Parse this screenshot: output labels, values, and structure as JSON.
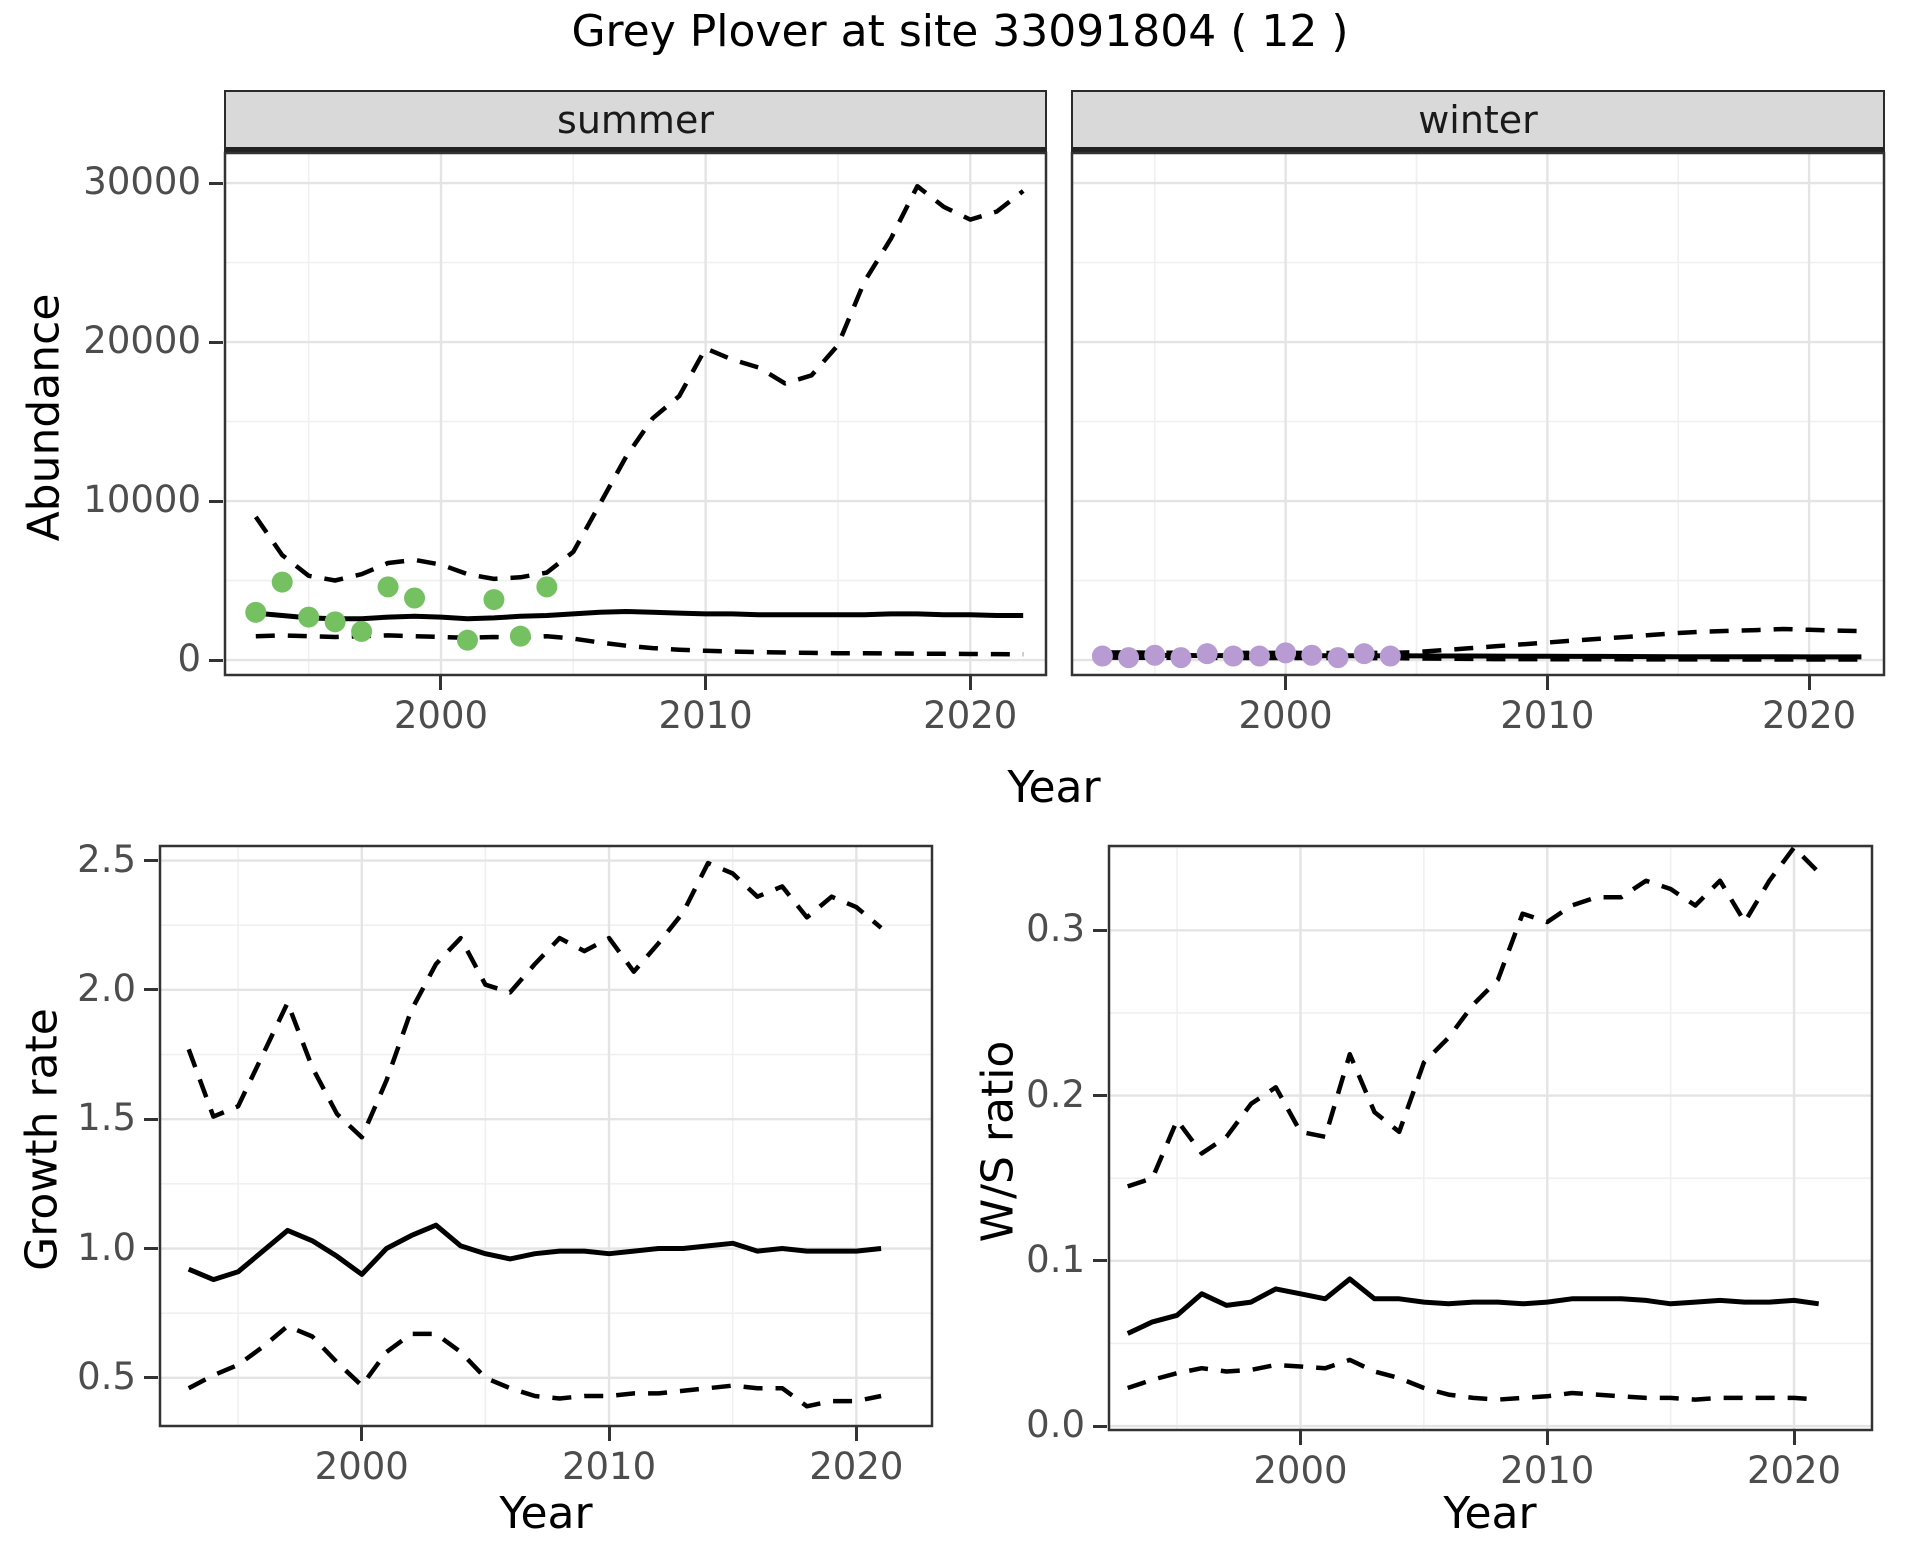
{
  "figure": {
    "title": "Grey Plover at site 33091804 ( 12 )"
  },
  "colors": {
    "summer_points": "#75C162",
    "winter_points": "#B79BD2",
    "line": "#000000",
    "strip_fill": "#d9d9d9",
    "major_grid": "#e4e4e4",
    "minor_grid": "#f0f0f0",
    "panel_border": "#333333",
    "tick_text": "#4d4d4d"
  },
  "chart_data": [
    {
      "id": "abundance-summer",
      "type": "line",
      "facet_label": "summer",
      "ylabel": "Abundance",
      "xlabel": "Year",
      "xlim": [
        1991.8,
        2022.9
      ],
      "ylim": [
        -1005,
        31951
      ],
      "xticks": [
        2000,
        2010,
        2020
      ],
      "xtick_labels": [
        "2000",
        "2010",
        "2020"
      ],
      "xticks_minor": [
        1995,
        2005,
        2015
      ],
      "yticks": [
        0,
        10000,
        20000,
        30000
      ],
      "ytick_labels": [
        "0",
        "10000",
        "20000",
        "30000"
      ],
      "yticks_minor": [
        5000,
        15000,
        25000
      ],
      "grid": true,
      "legend": "none",
      "series": [
        {
          "name": "upper-95ci",
          "style": "dashed",
          "x_start": 1993,
          "y": [
            9000,
            6600,
            5300,
            5000,
            5400,
            6100,
            6300,
            6000,
            5400,
            5100,
            5200,
            5500,
            6800,
            9800,
            12800,
            15200,
            16600,
            19600,
            18900,
            18400,
            17400,
            17900,
            19800,
            23800,
            26500,
            29800,
            28500,
            27700,
            28200,
            29500
          ]
        },
        {
          "name": "lower-95ci",
          "style": "dashed",
          "x_start": 1993,
          "y": [
            1500,
            1550,
            1500,
            1450,
            1500,
            1550,
            1500,
            1450,
            1400,
            1450,
            1400,
            1500,
            1350,
            1100,
            900,
            750,
            650,
            580,
            530,
            500,
            470,
            450,
            430,
            420,
            410,
            400,
            390,
            380,
            370,
            360
          ]
        },
        {
          "name": "median",
          "style": "solid",
          "x_start": 1993,
          "y": [
            2950,
            2800,
            2650,
            2600,
            2600,
            2700,
            2750,
            2700,
            2600,
            2650,
            2750,
            2800,
            2900,
            3000,
            3050,
            3000,
            2950,
            2900,
            2900,
            2850,
            2850,
            2850,
            2850,
            2850,
            2900,
            2900,
            2850,
            2850,
            2800,
            2800
          ]
        },
        {
          "name": "observed-counts",
          "style": "points",
          "color": "#75C162",
          "x": [
            1993,
            1994,
            1995,
            1996,
            1997,
            1998,
            1999,
            2001,
            2002,
            2003,
            2004
          ],
          "y": [
            3000,
            4900,
            2700,
            2400,
            1800,
            4600,
            3900,
            1250,
            3800,
            1500,
            4600
          ]
        }
      ]
    },
    {
      "id": "abundance-winter",
      "type": "line",
      "facet_label": "winter",
      "ylabel": "",
      "xlabel": "",
      "xlim": [
        1991.8,
        2022.9
      ],
      "ylim": [
        -1005,
        31951
      ],
      "xticks": [
        2000,
        2010,
        2020
      ],
      "xtick_labels": [
        "2000",
        "2010",
        "2020"
      ],
      "xticks_minor": [
        1995,
        2005,
        2015
      ],
      "yticks": [
        0,
        10000,
        20000,
        30000
      ],
      "ytick_labels": null,
      "yticks_minor": [
        5000,
        15000,
        25000
      ],
      "grid": true,
      "legend": "none",
      "series": [
        {
          "name": "upper-95ci",
          "style": "dashed",
          "x_start": 1993,
          "y": [
            480,
            470,
            460,
            455,
            450,
            450,
            445,
            445,
            440,
            440,
            445,
            450,
            500,
            620,
            740,
            860,
            980,
            1100,
            1220,
            1340,
            1450,
            1580,
            1700,
            1790,
            1840,
            1880,
            1950,
            1900,
            1850,
            1820
          ]
        },
        {
          "name": "lower-95ci",
          "style": "dashed",
          "x_start": 1993,
          "y": [
            150,
            145,
            140,
            140,
            135,
            135,
            130,
            130,
            125,
            125,
            120,
            120,
            100,
            80,
            70,
            60,
            55,
            50,
            50,
            45,
            45,
            40,
            40,
            40,
            35,
            35,
            35,
            30,
            30,
            30
          ]
        },
        {
          "name": "median",
          "style": "solid",
          "x_start": 1993,
          "y": [
            300,
            295,
            290,
            285,
            280,
            278,
            275,
            272,
            270,
            268,
            265,
            262,
            260,
            255,
            250,
            245,
            240,
            235,
            230,
            225,
            220,
            215,
            210,
            208,
            205,
            202,
            200,
            198,
            196,
            195
          ]
        },
        {
          "name": "observed-counts",
          "style": "points",
          "color": "#B79BD2",
          "x": [
            1993,
            1994,
            1995,
            1996,
            1997,
            1998,
            1999,
            2000,
            2001,
            2002,
            2003,
            2004
          ],
          "y": [
            250,
            150,
            300,
            150,
            400,
            250,
            250,
            450,
            300,
            150,
            400,
            250
          ]
        }
      ]
    },
    {
      "id": "growth-rate",
      "type": "line",
      "facet_label": "",
      "ylabel": "Growth rate",
      "xlabel": "Year",
      "xlim": [
        1991.8,
        2023.1
      ],
      "ylim": [
        0.31,
        2.56
      ],
      "xticks": [
        2000,
        2010,
        2020
      ],
      "xtick_labels": [
        "2000",
        "2010",
        "2020"
      ],
      "xticks_minor": [
        1995,
        2005,
        2015
      ],
      "yticks": [
        0.5,
        1.0,
        1.5,
        2.0,
        2.5
      ],
      "ytick_labels": [
        "0.5",
        "1.0",
        "1.5",
        "2.0",
        "2.5"
      ],
      "yticks_minor": [
        0.75,
        1.25,
        1.75,
        2.25
      ],
      "grid": true,
      "legend": "none",
      "series": [
        {
          "name": "upper-95ci",
          "style": "dashed",
          "x_start": 1993,
          "y": [
            1.77,
            1.51,
            1.55,
            1.75,
            1.95,
            1.7,
            1.52,
            1.43,
            1.65,
            1.92,
            2.1,
            2.2,
            2.02,
            1.99,
            2.1,
            2.2,
            2.15,
            2.2,
            2.07,
            2.18,
            2.3,
            2.49,
            2.45,
            2.36,
            2.4,
            2.28,
            2.36,
            2.32,
            2.24
          ]
        },
        {
          "name": "lower-95ci",
          "style": "dashed",
          "x_start": 1993,
          "y": [
            0.46,
            0.51,
            0.55,
            0.62,
            0.7,
            0.66,
            0.56,
            0.47,
            0.6,
            0.67,
            0.67,
            0.6,
            0.5,
            0.46,
            0.43,
            0.42,
            0.43,
            0.43,
            0.44,
            0.44,
            0.45,
            0.46,
            0.47,
            0.46,
            0.46,
            0.39,
            0.41,
            0.41,
            0.43
          ]
        },
        {
          "name": "median",
          "style": "solid",
          "x_start": 1993,
          "y": [
            0.92,
            0.88,
            0.91,
            0.99,
            1.07,
            1.03,
            0.97,
            0.9,
            1.0,
            1.05,
            1.09,
            1.01,
            0.98,
            0.96,
            0.98,
            0.99,
            0.99,
            0.98,
            0.99,
            1.0,
            1.0,
            1.01,
            1.02,
            0.99,
            1.0,
            0.99,
            0.99,
            0.99,
            1.0
          ]
        }
      ]
    },
    {
      "id": "ws-ratio",
      "type": "line",
      "facet_label": "",
      "ylabel": "W/S ratio",
      "xlabel": "Year",
      "xlim": [
        1992.2,
        2023.2
      ],
      "ylim": [
        -0.003,
        0.3516
      ],
      "xticks": [
        2000,
        2010,
        2020
      ],
      "xtick_labels": [
        "2000",
        "2010",
        "2020"
      ],
      "xticks_minor": [
        1995,
        2005,
        2015
      ],
      "yticks": [
        0.0,
        0.1,
        0.2,
        0.3
      ],
      "ytick_labels": [
        "0.0",
        "0.1",
        "0.2",
        "0.3"
      ],
      "yticks_minor": [
        0.05,
        0.15,
        0.25,
        0.35
      ],
      "grid": true,
      "legend": "none",
      "series": [
        {
          "name": "upper-95ci",
          "style": "dashed",
          "x_start": 1993,
          "y": [
            0.145,
            0.15,
            0.185,
            0.165,
            0.175,
            0.195,
            0.205,
            0.178,
            0.175,
            0.225,
            0.19,
            0.178,
            0.22,
            0.235,
            0.255,
            0.27,
            0.31,
            0.305,
            0.315,
            0.32,
            0.32,
            0.33,
            0.325,
            0.315,
            0.33,
            0.305,
            0.33,
            0.35,
            0.335
          ]
        },
        {
          "name": "lower-95ci",
          "style": "dashed",
          "x_start": 1993,
          "y": [
            0.023,
            0.028,
            0.032,
            0.035,
            0.033,
            0.034,
            0.037,
            0.036,
            0.035,
            0.04,
            0.033,
            0.029,
            0.023,
            0.019,
            0.017,
            0.016,
            0.017,
            0.018,
            0.02,
            0.019,
            0.018,
            0.017,
            0.017,
            0.016,
            0.017,
            0.017,
            0.017,
            0.017,
            0.016
          ]
        },
        {
          "name": "median",
          "style": "solid",
          "x_start": 1993,
          "y": [
            0.056,
            0.063,
            0.067,
            0.08,
            0.073,
            0.075,
            0.083,
            0.08,
            0.077,
            0.089,
            0.077,
            0.077,
            0.075,
            0.074,
            0.075,
            0.075,
            0.074,
            0.075,
            0.077,
            0.077,
            0.077,
            0.076,
            0.074,
            0.075,
            0.076,
            0.075,
            0.075,
            0.076,
            0.074
          ]
        }
      ]
    }
  ]
}
